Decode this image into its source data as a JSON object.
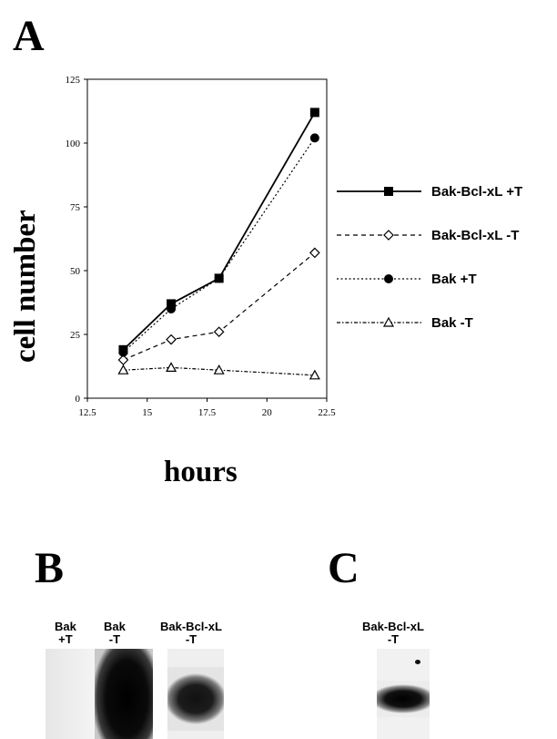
{
  "panels": {
    "a": "A",
    "b": "B",
    "c": "C"
  },
  "chart_data": {
    "type": "line",
    "xlabel": "hours",
    "ylabel": "cell number",
    "xlim": [
      12.5,
      22.5
    ],
    "ylim": [
      0,
      125
    ],
    "xticks": [
      "12.5",
      "15",
      "17.5",
      "20",
      "22.5"
    ],
    "yticks": [
      "0",
      "25",
      "50",
      "75",
      "100",
      "125"
    ],
    "x": [
      14,
      16,
      18,
      22
    ],
    "grid": false,
    "legend_position": "right",
    "series": [
      {
        "name": "Bak-Bcl-xL +T",
        "values": [
          19,
          37,
          47,
          112
        ],
        "marker": "filled-square",
        "line": "solid"
      },
      {
        "name": "Bak-Bcl-xL -T",
        "values": [
          15,
          23,
          26,
          57
        ],
        "marker": "open-diamond",
        "line": "dashed"
      },
      {
        "name": "Bak +T",
        "values": [
          18,
          35,
          47,
          102
        ],
        "marker": "filled-circle",
        "line": "dotted"
      },
      {
        "name": "Bak -T",
        "values": [
          11,
          12,
          11,
          9
        ],
        "marker": "open-triangle",
        "line": "dash-dot"
      }
    ]
  },
  "blot_b": {
    "labels": [
      "Bak\n+T",
      "Bak\n-T",
      "Bak-Bcl-xL\n-T"
    ]
  },
  "blot_c": {
    "labels": [
      "Bak-Bcl-xL\n-T"
    ]
  }
}
